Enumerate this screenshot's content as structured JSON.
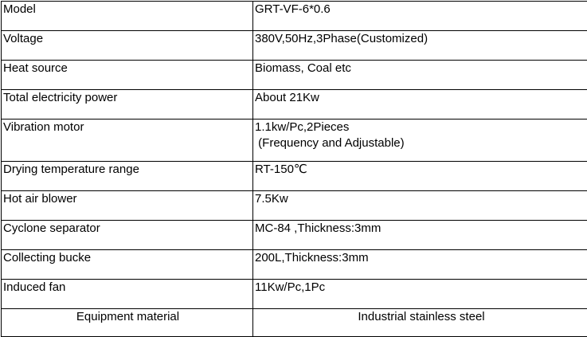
{
  "rows": [
    {
      "label": "Model",
      "value": "GRT-VF-6*0.6"
    },
    {
      "label": "Voltage",
      "value": "380V,50Hz,3Phase(Customized)"
    },
    {
      "label": "Heat source",
      "value": "Biomass, Coal etc"
    },
    {
      "label": "Total electricity power",
      "value": "About 21Kw"
    },
    {
      "label": "Vibration motor",
      "value": "1.1kw/Pc,2Pieces\n (Frequency and Adjustable)"
    },
    {
      "label": "Drying temperature range",
      "value": "RT-150℃"
    },
    {
      "label": "Hot air blower",
      "value": "7.5Kw"
    },
    {
      "label": "Cyclone separator",
      "value": "MC-84 ,Thickness:3mm"
    },
    {
      "label": "Collecting bucke",
      "value": "200L,Thickness:3mm"
    },
    {
      "label": "Induced fan",
      "value": "11Kw/Pc,1Pc"
    }
  ],
  "footer": {
    "label": "Equipment material",
    "value": "Industrial stainless steel"
  }
}
